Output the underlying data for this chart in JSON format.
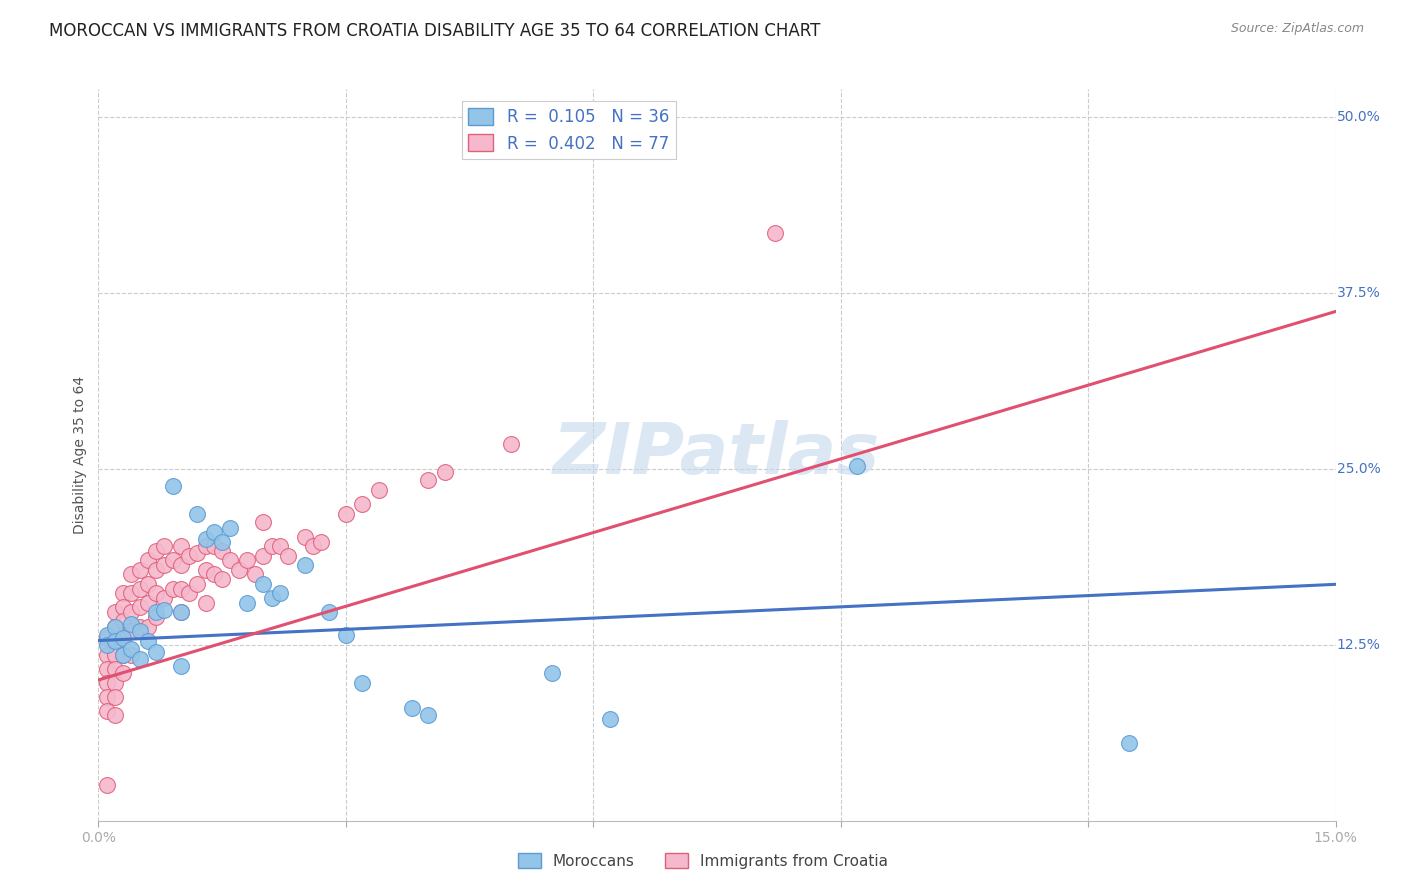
{
  "title": "MOROCCAN VS IMMIGRANTS FROM CROATIA DISABILITY AGE 35 TO 64 CORRELATION CHART",
  "source": "Source: ZipAtlas.com",
  "ylabel": "Disability Age 35 to 64",
  "watermark": "ZIPatlas",
  "xmin": 0.0,
  "xmax": 0.15,
  "ymin": 0.0,
  "ymax": 0.52,
  "xticks": [
    0.0,
    0.03,
    0.06,
    0.09,
    0.12,
    0.15
  ],
  "xticklabels": [
    "0.0%",
    "",
    "",
    "",
    "",
    "15.0%"
  ],
  "yticks_right": [
    0.125,
    0.25,
    0.375,
    0.5
  ],
  "ytick_labels_right": [
    "12.5%",
    "25.0%",
    "37.5%",
    "50.0%"
  ],
  "blue_R": 0.105,
  "blue_N": 36,
  "pink_R": 0.402,
  "pink_N": 77,
  "blue_color": "#92C5E8",
  "pink_color": "#F5B8CC",
  "blue_edge_color": "#5B9BD5",
  "pink_edge_color": "#E0607A",
  "blue_line_color": "#4472C4",
  "pink_line_color": "#E05070",
  "legend_label_blue": "Moroccans",
  "legend_label_pink": "Immigrants from Croatia",
  "blue_scatter_x": [
    0.001,
    0.001,
    0.002,
    0.002,
    0.003,
    0.003,
    0.004,
    0.004,
    0.005,
    0.005,
    0.006,
    0.007,
    0.007,
    0.008,
    0.009,
    0.01,
    0.01,
    0.012,
    0.013,
    0.014,
    0.015,
    0.016,
    0.018,
    0.02,
    0.021,
    0.022,
    0.025,
    0.028,
    0.03,
    0.032,
    0.038,
    0.04,
    0.055,
    0.062,
    0.092,
    0.125
  ],
  "blue_scatter_y": [
    0.132,
    0.125,
    0.138,
    0.128,
    0.13,
    0.118,
    0.14,
    0.122,
    0.135,
    0.115,
    0.128,
    0.148,
    0.12,
    0.15,
    0.238,
    0.148,
    0.11,
    0.218,
    0.2,
    0.205,
    0.198,
    0.208,
    0.155,
    0.168,
    0.158,
    0.162,
    0.182,
    0.148,
    0.132,
    0.098,
    0.08,
    0.075,
    0.105,
    0.072,
    0.252,
    0.055
  ],
  "pink_scatter_x": [
    0.001,
    0.001,
    0.001,
    0.001,
    0.001,
    0.001,
    0.001,
    0.002,
    0.002,
    0.002,
    0.002,
    0.002,
    0.002,
    0.002,
    0.002,
    0.003,
    0.003,
    0.003,
    0.003,
    0.003,
    0.003,
    0.004,
    0.004,
    0.004,
    0.004,
    0.004,
    0.005,
    0.005,
    0.005,
    0.005,
    0.006,
    0.006,
    0.006,
    0.006,
    0.007,
    0.007,
    0.007,
    0.007,
    0.008,
    0.008,
    0.008,
    0.009,
    0.009,
    0.01,
    0.01,
    0.01,
    0.01,
    0.011,
    0.011,
    0.012,
    0.012,
    0.013,
    0.013,
    0.013,
    0.014,
    0.014,
    0.015,
    0.015,
    0.016,
    0.017,
    0.018,
    0.019,
    0.02,
    0.02,
    0.021,
    0.022,
    0.023,
    0.025,
    0.026,
    0.027,
    0.03,
    0.032,
    0.034,
    0.04,
    0.042,
    0.05,
    0.082
  ],
  "pink_scatter_y": [
    0.13,
    0.118,
    0.108,
    0.098,
    0.088,
    0.078,
    0.025,
    0.148,
    0.138,
    0.128,
    0.118,
    0.108,
    0.098,
    0.088,
    0.075,
    0.162,
    0.152,
    0.142,
    0.132,
    0.118,
    0.105,
    0.175,
    0.162,
    0.148,
    0.135,
    0.118,
    0.178,
    0.165,
    0.152,
    0.138,
    0.185,
    0.168,
    0.155,
    0.138,
    0.192,
    0.178,
    0.162,
    0.145,
    0.195,
    0.182,
    0.158,
    0.185,
    0.165,
    0.195,
    0.182,
    0.165,
    0.148,
    0.188,
    0.162,
    0.19,
    0.168,
    0.195,
    0.178,
    0.155,
    0.195,
    0.175,
    0.192,
    0.172,
    0.185,
    0.178,
    0.185,
    0.175,
    0.212,
    0.188,
    0.195,
    0.195,
    0.188,
    0.202,
    0.195,
    0.198,
    0.218,
    0.225,
    0.235,
    0.242,
    0.248,
    0.268,
    0.418
  ],
  "blue_line_x": [
    0.0,
    0.15
  ],
  "blue_line_y": [
    0.128,
    0.168
  ],
  "pink_line_x": [
    0.0,
    0.15
  ],
  "pink_line_y": [
    0.1,
    0.362
  ],
  "background_color": "#FFFFFF",
  "grid_color": "#CCCCCC",
  "title_fontsize": 12,
  "axis_label_fontsize": 10,
  "tick_fontsize": 10,
  "watermark_fontsize": 52,
  "watermark_color": "#C5D8EE",
  "watermark_alpha": 0.6
}
